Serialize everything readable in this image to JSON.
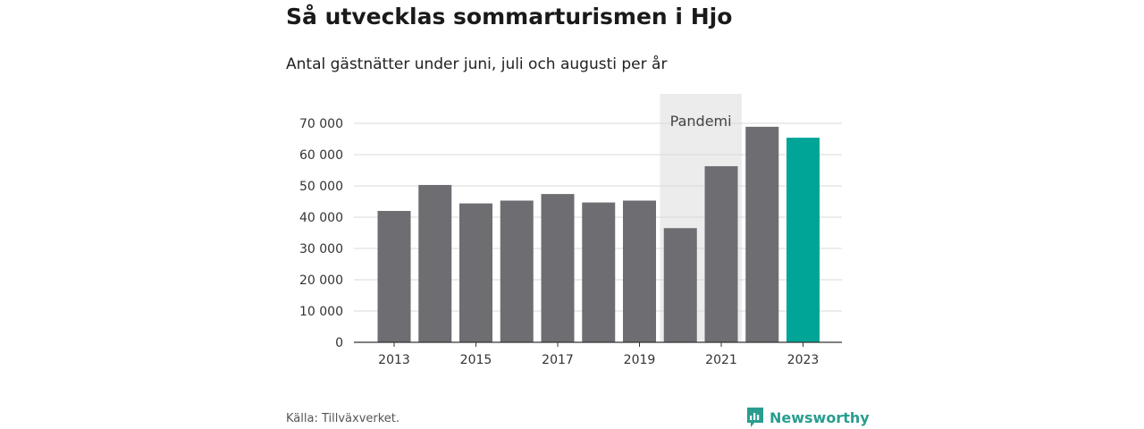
{
  "header": {
    "title": "Så utvecklas sommarturismen i Hjo",
    "subtitle": "Antal gästnätter under juni, juli och augusti per år"
  },
  "chart_data": {
    "type": "bar",
    "categories": [
      "2013",
      "2014",
      "2015",
      "2016",
      "2017",
      "2018",
      "2019",
      "2020",
      "2021",
      "2022",
      "2023"
    ],
    "values": [
      42000,
      50300,
      44400,
      45300,
      47400,
      44700,
      45300,
      36500,
      56300,
      68900,
      65400
    ],
    "highlight_category": "2023",
    "x_tick_labels": [
      "2013",
      "2015",
      "2017",
      "2019",
      "2021",
      "2023"
    ],
    "y_ticks": [
      0,
      10000,
      20000,
      30000,
      40000,
      50000,
      60000,
      70000
    ],
    "y_tick_labels": [
      "0",
      "10 000",
      "20 000",
      "30 000",
      "40 000",
      "50 000",
      "60 000",
      "70 000"
    ],
    "ylim": [
      0,
      70000
    ],
    "grid": true,
    "annotation": {
      "label": "Pandemi",
      "from": "2020",
      "to": "2021"
    },
    "colors": {
      "bar": "#6e6d72",
      "highlight": "#00a597",
      "band": "#ececec",
      "grid": "#d9d9d9",
      "axis": "#333333"
    }
  },
  "footer": {
    "source": "Källa: Tillväxverket.",
    "brand": "Newsworthy",
    "brand_icon": "bar-chart-badge-icon",
    "brand_color": "#2a9d8f"
  }
}
